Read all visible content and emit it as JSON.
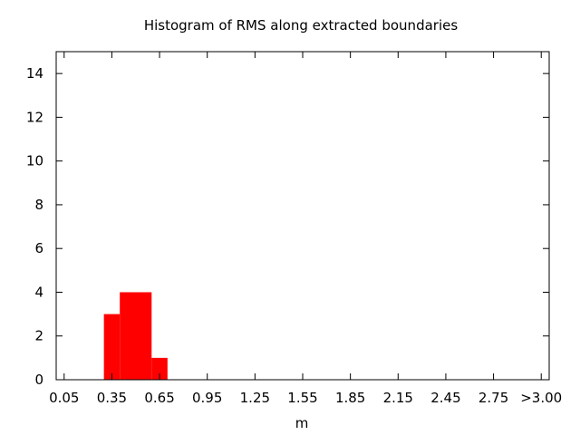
{
  "chart_data": {
    "type": "bar",
    "title": "Histogram of RMS along extracted boundaries",
    "xlabel": "m",
    "ylabel": "",
    "x_tick_labels": [
      "0.05",
      "0.35",
      "0.65",
      "0.95",
      "1.25",
      "1.55",
      "1.85",
      "2.15",
      "2.45",
      "2.75",
      ">3.00"
    ],
    "x_tick_values": [
      0.05,
      0.35,
      0.65,
      0.95,
      1.25,
      1.55,
      1.85,
      2.15,
      2.45,
      2.75,
      3.05
    ],
    "xlim": [
      0.0,
      3.1
    ],
    "ylim": [
      0,
      15
    ],
    "y_tick_labels": [
      "0",
      "2",
      "4",
      "6",
      "8",
      "10",
      "12",
      "14"
    ],
    "y_tick_values": [
      0,
      2,
      4,
      6,
      8,
      10,
      12,
      14
    ],
    "bins": [
      {
        "from": 0.3,
        "to": 0.4,
        "value": 3
      },
      {
        "from": 0.4,
        "to": 0.6,
        "value": 4
      },
      {
        "from": 0.6,
        "to": 0.7,
        "value": 1
      }
    ],
    "bar_color": "#ff0000",
    "grid": false
  }
}
